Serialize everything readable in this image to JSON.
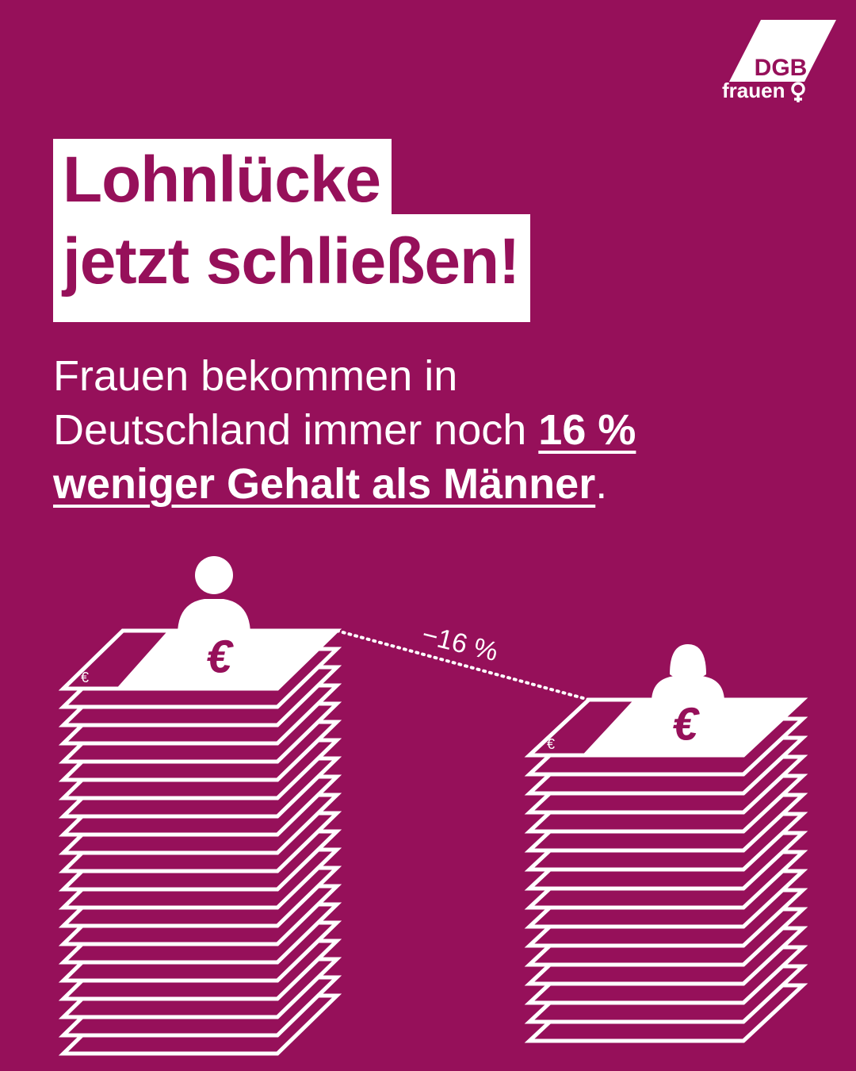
{
  "logo": {
    "name": "DGB",
    "sub": "frauen"
  },
  "headline": {
    "lines": [
      "Lohnlücke",
      "jetzt schließen!"
    ]
  },
  "body": {
    "parts": [
      "Frauen bekommen in",
      "Deutschland immer noch",
      "16 %",
      "weniger Gehalt als Männer",
      "."
    ]
  },
  "gap_label": "−16 %",
  "currency": "€"
}
